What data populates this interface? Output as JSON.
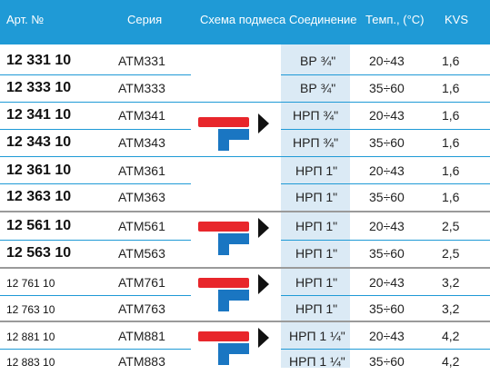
{
  "headers": {
    "art": "Арт. №",
    "series": "Серия",
    "scheme": "Схема подмеса",
    "connection": "Соединение",
    "temp": "Темп., (°C)",
    "kvs": "KVS"
  },
  "rows": [
    {
      "art": "12 331 10",
      "series": "ATM331",
      "connection": "ВР ¾\"",
      "temp": "20÷43",
      "kvs": "1,6"
    },
    {
      "art": "12 333 10",
      "series": "ATM333",
      "connection": "ВР ¾\"",
      "temp": "35÷60",
      "kvs": "1,6"
    },
    {
      "art": "12 341 10",
      "series": "ATM341",
      "connection": "НРП ¾\"",
      "temp": "20÷43",
      "kvs": "1,6"
    },
    {
      "art": "12 343 10",
      "series": "ATM343",
      "connection": "НРП ¾\"",
      "temp": "35÷60",
      "kvs": "1,6"
    },
    {
      "art": "12 361 10",
      "series": "ATM361",
      "connection": "НРП 1\"",
      "temp": "20÷43",
      "kvs": "1,6"
    },
    {
      "art": "12 363 10",
      "series": "ATM363",
      "connection": "НРП 1\"",
      "temp": "35÷60",
      "kvs": "1,6"
    },
    {
      "art": "12 561 10",
      "series": "ATM561",
      "connection": "НРП 1\"",
      "temp": "20÷43",
      "kvs": "2,5"
    },
    {
      "art": "12 563 10",
      "series": "ATM563",
      "connection": "НРП 1\"",
      "temp": "35÷60",
      "kvs": "2,5"
    },
    {
      "art": "12 761 10",
      "series": "ATM761",
      "connection": "НРП 1\"",
      "temp": "20÷43",
      "kvs": "3,2"
    },
    {
      "art": "12 763 10",
      "series": "ATM763",
      "connection": "НРП 1\"",
      "temp": "35÷60",
      "kvs": "3,2"
    },
    {
      "art": "12 881 10",
      "series": "ATM881",
      "connection": "НРП 1 ¼\"",
      "temp": "20÷43",
      "kvs": "4,2"
    },
    {
      "art": "12 883 10",
      "series": "ATM883",
      "connection": "НРП 1 ¼\"",
      "temp": "35÷60",
      "kvs": "4,2"
    }
  ],
  "colors": {
    "header_bg": "#1f9ad6",
    "hot_pipe": "#e8262b",
    "cold_pipe": "#1a76c2",
    "connection_bg": "#dbeaf5"
  }
}
